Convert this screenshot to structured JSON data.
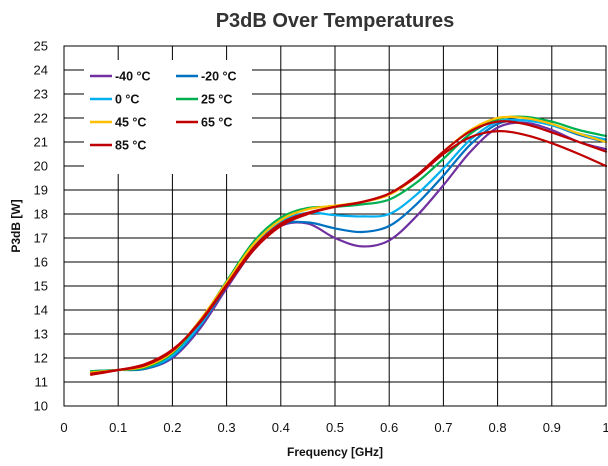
{
  "chart_data": {
    "type": "line",
    "title": "P3dB Over Temperatures",
    "xlabel": "Frequency [GHz]",
    "ylabel": "P3dB [W]",
    "xlim": [
      0,
      1
    ],
    "ylim": [
      10,
      25
    ],
    "x_ticks": [
      "0",
      "0.1",
      "0.2",
      "0.3",
      "0.4",
      "0.5",
      "0.6",
      "0.7",
      "0.8",
      "0.9",
      "1"
    ],
    "y_ticks": [
      "10",
      "11",
      "12",
      "13",
      "14",
      "15",
      "16",
      "17",
      "18",
      "19",
      "20",
      "21",
      "22",
      "23",
      "24",
      "25"
    ],
    "grid": true,
    "legend_position": "top-left",
    "series": [
      {
        "name": "-40 °C",
        "color": "#7030A0",
        "x": [
          0.05,
          0.1,
          0.15,
          0.2,
          0.25,
          0.3,
          0.35,
          0.4,
          0.45,
          0.5,
          0.55,
          0.6,
          0.65,
          0.7,
          0.75,
          0.8,
          0.85,
          0.9,
          0.95,
          1.0
        ],
        "y": [
          11.45,
          11.5,
          11.55,
          12.0,
          13.2,
          14.9,
          16.5,
          17.5,
          17.6,
          17.0,
          16.65,
          16.9,
          17.9,
          19.2,
          20.6,
          21.6,
          21.8,
          21.5,
          21.0,
          20.7
        ]
      },
      {
        "name": "-20 °C",
        "color": "#0070C0",
        "x": [
          0.05,
          0.1,
          0.15,
          0.2,
          0.25,
          0.3,
          0.35,
          0.4,
          0.45,
          0.5,
          0.55,
          0.6,
          0.65,
          0.7,
          0.75,
          0.8,
          0.85,
          0.9,
          0.95,
          1.0
        ],
        "y": [
          11.45,
          11.5,
          11.55,
          12.05,
          13.3,
          15.0,
          16.6,
          17.55,
          17.65,
          17.4,
          17.25,
          17.5,
          18.4,
          19.6,
          20.9,
          21.75,
          21.9,
          21.7,
          21.3,
          21.0
        ]
      },
      {
        "name": "0 °C",
        "color": "#00B0F0",
        "x": [
          0.05,
          0.1,
          0.15,
          0.2,
          0.25,
          0.3,
          0.35,
          0.4,
          0.45,
          0.5,
          0.55,
          0.6,
          0.65,
          0.7,
          0.75,
          0.8,
          0.85,
          0.9,
          0.95,
          1.0
        ],
        "y": [
          11.4,
          11.5,
          11.6,
          12.1,
          13.35,
          15.05,
          16.7,
          17.7,
          18.05,
          17.95,
          17.9,
          18.0,
          18.8,
          19.9,
          21.1,
          21.85,
          21.9,
          21.7,
          21.35,
          21.1
        ]
      },
      {
        "name": "25 °C",
        "color": "#00B050",
        "x": [
          0.05,
          0.1,
          0.15,
          0.2,
          0.25,
          0.3,
          0.35,
          0.4,
          0.45,
          0.5,
          0.55,
          0.6,
          0.65,
          0.7,
          0.75,
          0.8,
          0.85,
          0.9,
          0.95,
          1.0
        ],
        "y": [
          11.45,
          11.5,
          11.6,
          12.2,
          13.5,
          15.2,
          16.85,
          17.85,
          18.25,
          18.3,
          18.4,
          18.6,
          19.3,
          20.3,
          21.35,
          21.95,
          22.05,
          21.85,
          21.5,
          21.25
        ]
      },
      {
        "name": "45 °C",
        "color": "#FFC000",
        "x": [
          0.05,
          0.1,
          0.15,
          0.2,
          0.25,
          0.3,
          0.35,
          0.4,
          0.45,
          0.5,
          0.55,
          0.6,
          0.65,
          0.7,
          0.75,
          0.8,
          0.85,
          0.9,
          0.95,
          1.0
        ],
        "y": [
          11.4,
          11.5,
          11.65,
          12.25,
          13.55,
          15.15,
          16.75,
          17.75,
          18.2,
          18.35,
          18.5,
          18.8,
          19.55,
          20.6,
          21.5,
          22.0,
          22.0,
          21.75,
          21.35,
          21.0
        ]
      },
      {
        "name": "65 °C",
        "color": "#C00000",
        "x": [
          0.05,
          0.1,
          0.15,
          0.2,
          0.25,
          0.3,
          0.35,
          0.4,
          0.45,
          0.5,
          0.55,
          0.6,
          0.65,
          0.7,
          0.75,
          0.8,
          0.85,
          0.9,
          0.95,
          1.0
        ],
        "y": [
          11.35,
          11.5,
          11.7,
          12.3,
          13.5,
          15.05,
          16.6,
          17.6,
          18.05,
          18.3,
          18.5,
          18.85,
          19.6,
          20.6,
          21.45,
          21.85,
          21.75,
          21.4,
          21.0,
          20.6
        ]
      },
      {
        "name": "85 °C",
        "color": "#C00000",
        "x": [
          0.05,
          0.1,
          0.15,
          0.2,
          0.25,
          0.3,
          0.35,
          0.4,
          0.45,
          0.5,
          0.55,
          0.6,
          0.65,
          0.7,
          0.75,
          0.8,
          0.85,
          0.9,
          0.95,
          1.0
        ],
        "y": [
          11.3,
          11.5,
          11.75,
          12.35,
          13.45,
          15.0,
          16.5,
          17.5,
          18.0,
          18.3,
          18.5,
          18.85,
          19.55,
          20.5,
          21.2,
          21.45,
          21.3,
          20.95,
          20.5,
          20.0
        ]
      }
    ]
  }
}
